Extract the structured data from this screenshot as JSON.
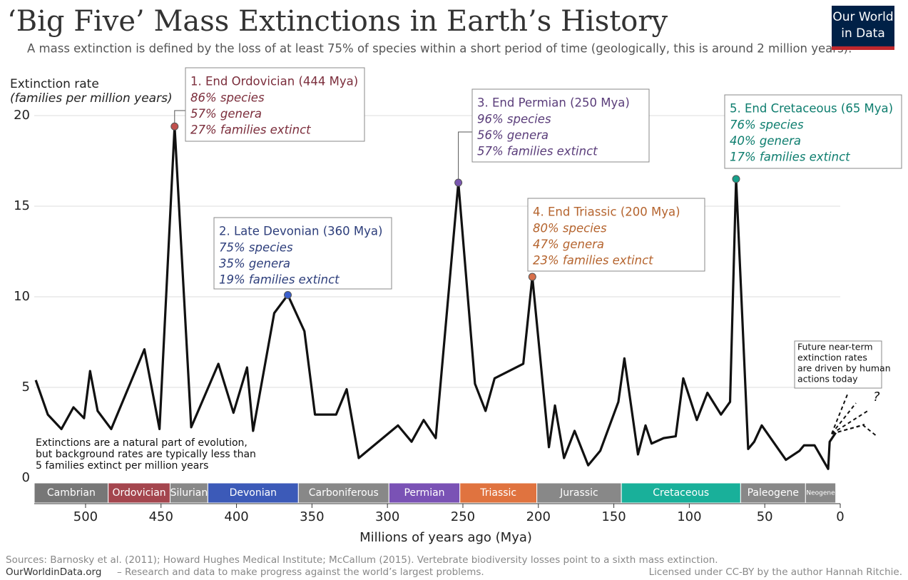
{
  "chart_data": {
    "type": "line",
    "title": "‘Big Five’ Mass Extinctions in Earth’s History",
    "subtitle": "A mass extinction is defined by the loss of at least 75% of species within a short period of time (geologically, this is around 2 million years).",
    "y_label": [
      "Extinction rate",
      "(families per million years)"
    ],
    "x_label": "Millions of years ago (Mya)",
    "logo": [
      "Our World",
      "in Data"
    ],
    "xlim": [
      534,
      0
    ],
    "xticks": [
      500,
      450,
      400,
      350,
      300,
      250,
      200,
      150,
      100,
      50,
      0
    ],
    "ylim": [
      0,
      20
    ],
    "yticks": [
      0,
      5,
      10,
      15,
      20
    ],
    "grid": true,
    "series": [
      {
        "name": "Extinction rate",
        "color": "#111111",
        "x": [
          533,
          525,
          516,
          508,
          501,
          497,
          492,
          483,
          461,
          451,
          441,
          430,
          412,
          402,
          393,
          389,
          375,
          366,
          355,
          348,
          334,
          327,
          319,
          293,
          284,
          276,
          268,
          253,
          242,
          235,
          229,
          210,
          204,
          193,
          189,
          183,
          176,
          167,
          159,
          147,
          143,
          134,
          129,
          125,
          117,
          109,
          104,
          95,
          88,
          79,
          73,
          69,
          61,
          57,
          52,
          36,
          27,
          24,
          17,
          8,
          7,
          3
        ],
        "values": [
          5.4,
          3.5,
          2.7,
          3.9,
          3.3,
          5.9,
          3.7,
          2.7,
          7.1,
          2.7,
          19.4,
          2.8,
          6.3,
          3.6,
          6.1,
          2.6,
          9.1,
          10.1,
          8.1,
          3.5,
          3.5,
          4.9,
          1.1,
          2.9,
          2.0,
          3.2,
          2.2,
          16.3,
          5.2,
          3.7,
          5.5,
          6.3,
          11.1,
          1.7,
          4.0,
          1.1,
          2.6,
          0.7,
          1.5,
          4.2,
          6.6,
          1.3,
          2.9,
          1.9,
          2.2,
          2.3,
          5.5,
          3.2,
          4.7,
          3.5,
          4.2,
          16.5,
          1.6,
          2.0,
          2.9,
          1.0,
          1.5,
          1.8,
          1.8,
          0.5,
          2.0,
          2.5
        ]
      }
    ],
    "annotations": [
      {
        "title": "1. End Ordovician (444 Mya)",
        "lines": [
          "86% species",
          "57% genera",
          "27% families extinct"
        ],
        "color": "#7b2d3b",
        "dot_color": "#c0504d"
      },
      {
        "title": "2. Late Devonian (360 Mya)",
        "lines": [
          "75% species",
          "35% genera",
          "19% families extinct"
        ],
        "color": "#2d3e7b",
        "dot_color": "#3a5fcd"
      },
      {
        "title": "3. End Permian (250 Mya)",
        "lines": [
          "96% species",
          "56% genera",
          "57% families extinct"
        ],
        "color": "#5a3d7a",
        "dot_color": "#7a57b0"
      },
      {
        "title": "4. End Triassic (200 Mya)",
        "lines": [
          "80% species",
          "47% genera",
          "23% families extinct"
        ],
        "color": "#b5642e",
        "dot_color": "#d8704a"
      },
      {
        "title": "5. End Cretaceous (65 Mya)",
        "lines": [
          "76% species",
          "40% genera",
          "17% families extinct"
        ],
        "color": "#0d7d6e",
        "dot_color": "#16a08a"
      }
    ],
    "periods": [
      {
        "name": "Cambrian",
        "start": 534,
        "end": 485,
        "color": "#777777"
      },
      {
        "name": "Ordovician",
        "start": 485,
        "end": 444,
        "color": "#a4464e"
      },
      {
        "name": "Silurian",
        "start": 444,
        "end": 419,
        "color": "#888888"
      },
      {
        "name": "Devonian",
        "start": 419,
        "end": 359,
        "color": "#3c5ab8"
      },
      {
        "name": "Carboniferous",
        "start": 359,
        "end": 299,
        "color": "#888888"
      },
      {
        "name": "Permian",
        "start": 299,
        "end": 252,
        "color": "#7a52b5"
      },
      {
        "name": "Triassic",
        "start": 252,
        "end": 201,
        "color": "#e0733f"
      },
      {
        "name": "Jurassic",
        "start": 201,
        "end": 145,
        "color": "#888888"
      },
      {
        "name": "Cretaceous",
        "start": 145,
        "end": 66,
        "color": "#19b09a"
      },
      {
        "name": "Paleogene",
        "start": 66,
        "end": 23,
        "color": "#888888"
      },
      {
        "name": "Neogene",
        "start": 23,
        "end": 3,
        "color": "#888888"
      }
    ],
    "note_background": [
      "Extinctions are a natural part of evolution,",
      "but background rates are typically less than",
      "5 families extinct per million years"
    ],
    "note_future": [
      "Future near-term",
      "extinction rates",
      "are driven by human",
      "actions today"
    ],
    "future_mark": "?",
    "sources": "Sources: Barnosky et al. (2011); Howard Hughes Medical Institute; McCallum (2015). Vertebrate biodiversity losses point to a sixth mass extinction.",
    "footer_site": "OurWorldinData.org",
    "footer_text": "– Research and data to make progress against the world’s largest problems.",
    "license": "Licensed under CC-BY by the author Hannah Ritchie."
  }
}
